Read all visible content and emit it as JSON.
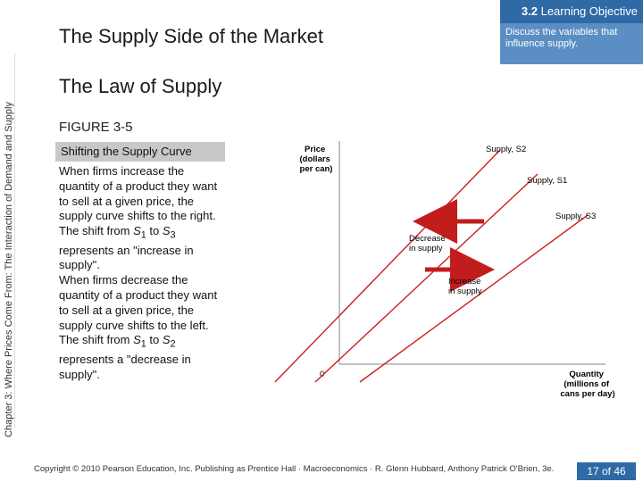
{
  "objective": {
    "number": "3.2",
    "label": "Learning Objective",
    "text": "Discuss the variables that influence supply."
  },
  "slide": {
    "title": "The Supply Side of the Market",
    "subtitle": "The Law of Supply",
    "side_label": "Chapter 3: Where Prices Come From: The Interaction of Demand and Supply"
  },
  "figure": {
    "label": "FIGURE 3-5",
    "title": "Shifting the Supply Curve",
    "description": [
      "When firms increase the quantity of a product they want to sell at a given price, the supply curve shifts to the right.",
      "The shift from S1 to S3 represents an \"increase in supply\".",
      "When firms decrease the quantity of a product they want to sell at a given price, the supply curve shifts to the left.",
      "The shift from S1 to S2 represents a \"decrease in supply\"."
    ]
  },
  "chart_data": {
    "type": "line",
    "ylabel": "Price (dollars per can)",
    "xlabel": "Quantity (millions of cans per day)",
    "origin_label": "0",
    "series": [
      {
        "name": "Supply, S2",
        "color": "#cc1f1f"
      },
      {
        "name": "Supply, S1",
        "color": "#cc1f1f"
      },
      {
        "name": "Supply, S3",
        "color": "#cc1f1f"
      }
    ],
    "annotations": [
      {
        "text": "Decrease in supply",
        "arrow_color": "#c21d1d"
      },
      {
        "text": "Increase in supply",
        "arrow_color": "#c21d1d"
      }
    ]
  },
  "footer": {
    "copyright": "Copyright © 2010 Pearson Education, Inc. Publishing as Prentice Hall · Macroeconomics · R. Glenn Hubbard, Anthony Patrick O'Brien, 3e.",
    "page": "17 of 46"
  }
}
